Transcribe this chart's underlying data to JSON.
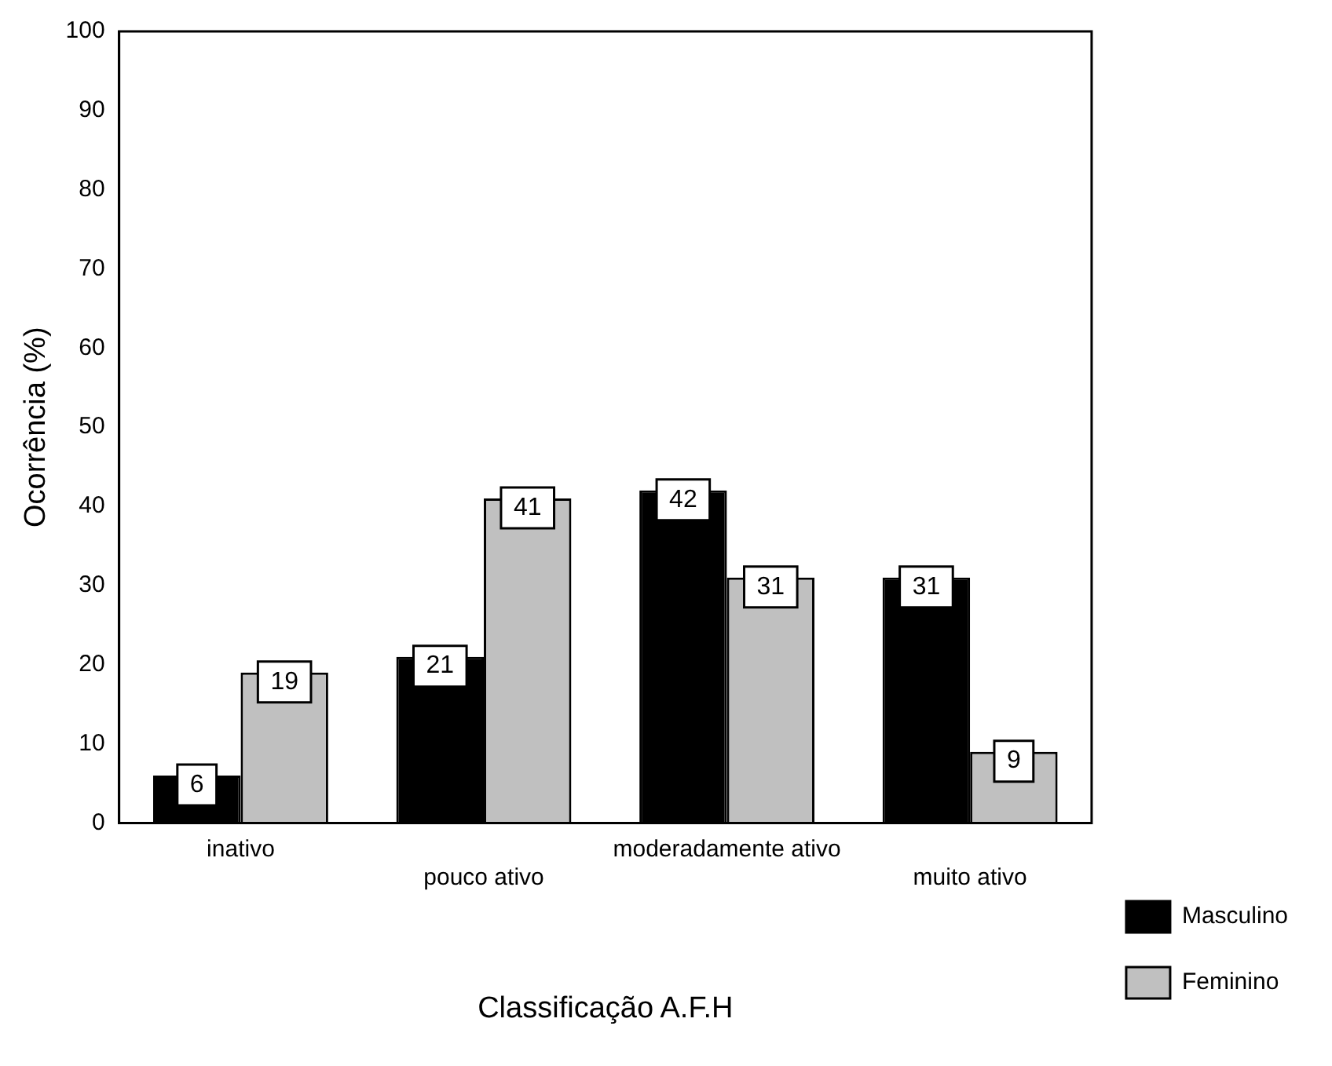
{
  "chart_data": {
    "type": "bar",
    "xlabel": "Classificação A.F.H",
    "ylabel": "Ocorrência (%)",
    "categories": [
      "inativo",
      "pouco ativo",
      "moderadamente ativo",
      "muito ativo"
    ],
    "series": [
      {
        "name": "Masculino",
        "color": "#000000",
        "values": [
          6,
          21,
          42,
          31
        ]
      },
      {
        "name": "Feminino",
        "color": "#c0c0c0",
        "values": [
          19,
          41,
          31,
          9
        ]
      }
    ],
    "ylim": [
      0,
      100
    ],
    "yticks": [
      0,
      10,
      20,
      30,
      40,
      50,
      60,
      70,
      80,
      90,
      100
    ],
    "grid": false,
    "legend": "right",
    "data_labels": true
  }
}
